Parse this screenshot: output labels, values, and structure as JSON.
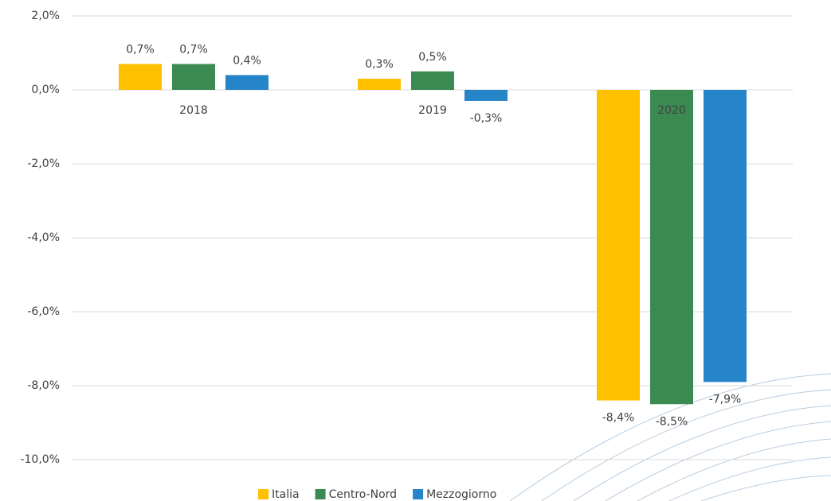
{
  "chart_data": {
    "type": "bar",
    "categories": [
      "2018",
      "2019",
      "2020"
    ],
    "series": [
      {
        "name": "Italia",
        "color": "#ffc000",
        "values": [
          0.7,
          0.3,
          -8.4
        ],
        "value_labels": [
          "0,7%",
          "0,3%",
          "-8,4%"
        ]
      },
      {
        "name": "Centro-Nord",
        "color": "#3b8a52",
        "values": [
          0.7,
          0.5,
          -8.5
        ],
        "value_labels": [
          "0,7%",
          "0,5%",
          "-8,5%"
        ]
      },
      {
        "name": "Mezzogiorno",
        "color": "#2684c9",
        "values": [
          0.4,
          -0.3,
          -7.9
        ],
        "value_labels": [
          "0,4%",
          "-0,3%",
          "-7,9%"
        ]
      }
    ],
    "ylim": [
      -10,
      2
    ],
    "yticks": [
      {
        "value": 2,
        "label": "2,0%"
      },
      {
        "value": 0,
        "label": "0,0%"
      },
      {
        "value": -2,
        "label": "-2,0%"
      },
      {
        "value": -4,
        "label": "-4,0%"
      },
      {
        "value": -6,
        "label": "-6,0%"
      },
      {
        "value": -8,
        "label": "-8,0%"
      },
      {
        "value": -10,
        "label": "-10,0%"
      }
    ],
    "grid": true
  }
}
